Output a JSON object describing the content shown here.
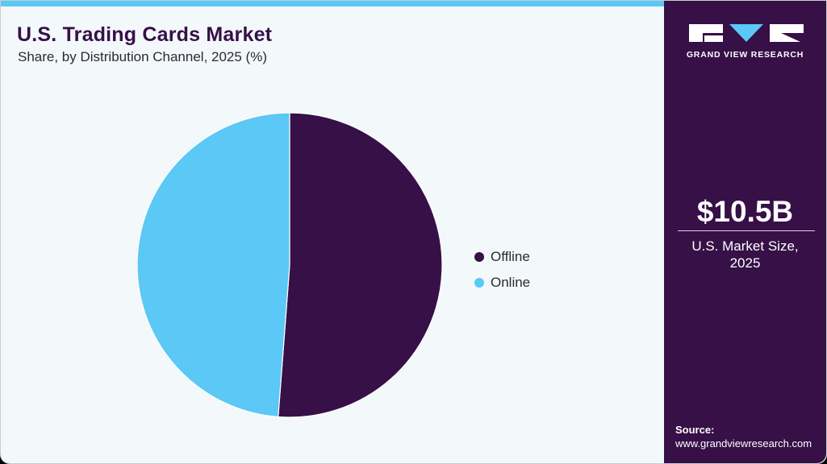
{
  "header": {
    "title": "U.S. Trading Cards Market",
    "subtitle": "Share, by Distribution Channel, 2025 (%)"
  },
  "legend": {
    "items": [
      {
        "label": "Offline",
        "color": "#361047"
      },
      {
        "label": "Online",
        "color": "#5bc8f5"
      }
    ]
  },
  "sidebar": {
    "brand": "GRAND VIEW RESEARCH",
    "market_size": "$10.5B",
    "market_caption_line1": "U.S. Market Size,",
    "market_caption_line2": "2025",
    "source_label": "Source:",
    "source_url": "www.grandviewresearch.com"
  },
  "colors": {
    "accent": "#5bc8f5",
    "brand": "#361047",
    "background": "#f3f8fb"
  },
  "chart_data": {
    "type": "pie",
    "title": "U.S. Trading Cards Market",
    "subtitle": "Share, by Distribution Channel, 2025 (%)",
    "categories": [
      "Offline",
      "Online"
    ],
    "values": [
      51.2,
      48.8
    ],
    "colors": [
      "#361047",
      "#5bc8f5"
    ],
    "legend_position": "right",
    "start_angle": "12 o'clock, clockwise"
  }
}
